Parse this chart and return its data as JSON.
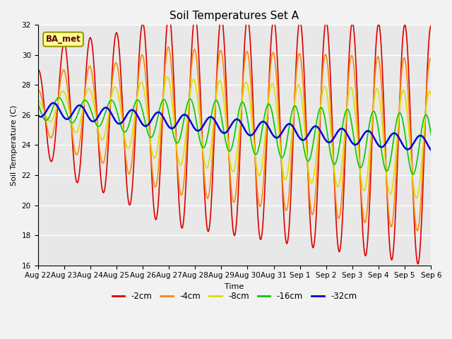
{
  "title": "Soil Temperatures Set A",
  "xlabel": "Time",
  "ylabel": "Soil Temperature (C)",
  "ylim": [
    16,
    32
  ],
  "background_color": "#f2f2f2",
  "plot_bg": "#e8e8e8",
  "annotation": "BA_met",
  "legend": [
    "-2cm",
    "-4cm",
    "-8cm",
    "-16cm",
    "-32cm"
  ],
  "colors": [
    "#dd0000",
    "#ff8800",
    "#dddd00",
    "#00cc00",
    "#0000dd"
  ],
  "linewidths": [
    1.2,
    1.2,
    1.2,
    1.2,
    1.8
  ],
  "xtick_labels": [
    "Aug 22",
    "Aug 23",
    "Aug 24",
    "Aug 25",
    "Aug 26",
    "Aug 27",
    "Aug 28",
    "Aug 29",
    "Aug 30",
    "Aug 31",
    "Sep 1",
    "Sep 2",
    "Sep 3",
    "Sep 4",
    "Sep 5",
    "Sep 6"
  ],
  "title_fontsize": 11,
  "label_fontsize": 8,
  "tick_fontsize": 7.5,
  "figsize": [
    6.4,
    4.8
  ],
  "dpi": 100
}
